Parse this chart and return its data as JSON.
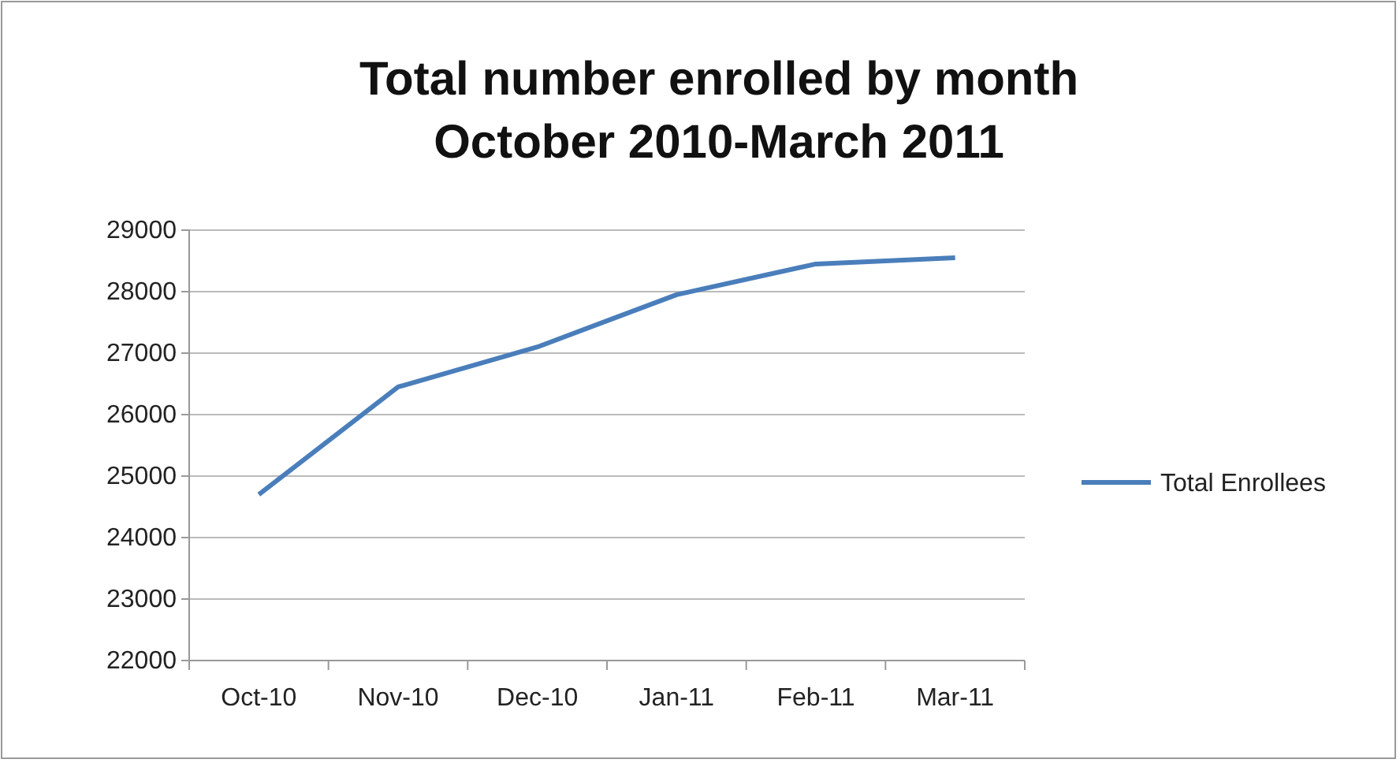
{
  "chart_data": {
    "type": "line",
    "title": "Total number enrolled by month\nOctober 2010-March 2011",
    "categories": [
      "Oct-10",
      "Nov-10",
      "Dec-10",
      "Jan-11",
      "Feb-11",
      "Mar-11"
    ],
    "series": [
      {
        "name": "Total Enrollees",
        "color": "#4a7ebb",
        "values": [
          24700,
          26450,
          27100,
          27950,
          28450,
          28550
        ]
      }
    ],
    "ylim": [
      22000,
      29000
    ],
    "yticks": [
      22000,
      23000,
      24000,
      25000,
      26000,
      27000,
      28000,
      29000
    ],
    "grid": "y",
    "legend": "right",
    "marker": "none",
    "line_style": "solid"
  }
}
